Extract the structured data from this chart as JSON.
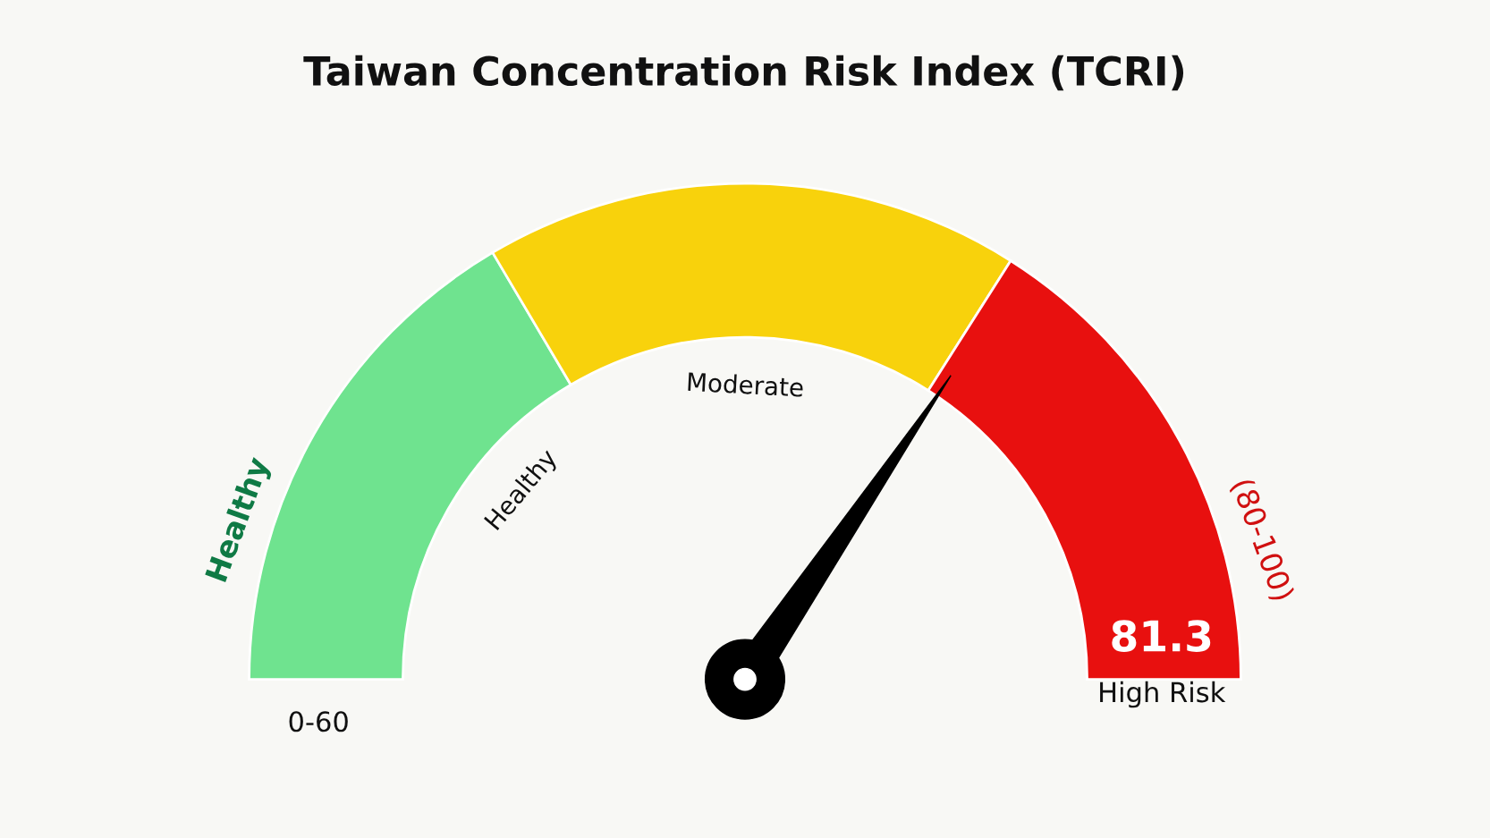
{
  "chart_data": {
    "type": "donut",
    "title": "Taiwan Concentration Risk Index (TCRI)",
    "categories": [
      "Healthy",
      "Moderate",
      "High Risk"
    ],
    "values": [
      33,
      35,
      32
    ],
    "colors": [
      "#6fe38f",
      "#f8d20c",
      "#e8100f"
    ],
    "needle": "High Risk",
    "annotations": [
      "Healthy",
      "0-60",
      "(80-100)",
      "81.3"
    ]
  }
}
